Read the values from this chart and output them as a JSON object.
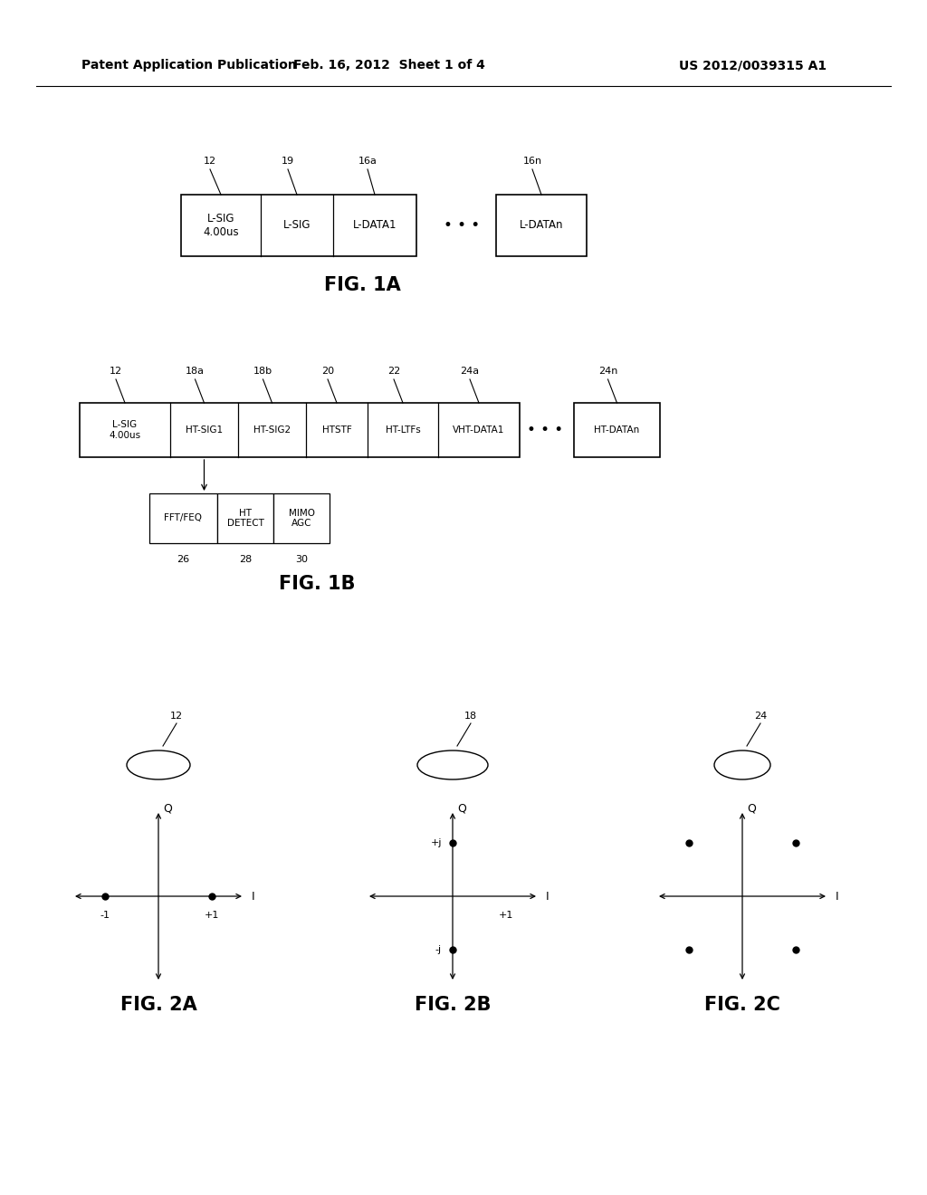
{
  "bg_color": "#ffffff",
  "header_left": "Patent Application Publication",
  "header_mid": "Feb. 16, 2012  Sheet 1 of 4",
  "header_right": "US 2012/0039315 A1",
  "fig1a_label": "FIG. 1A",
  "fig1b_label": "FIG. 1B",
  "fig2a_label": "FIG. 2A",
  "fig2b_label": "FIG. 2B",
  "fig2c_label": "FIG. 2C"
}
